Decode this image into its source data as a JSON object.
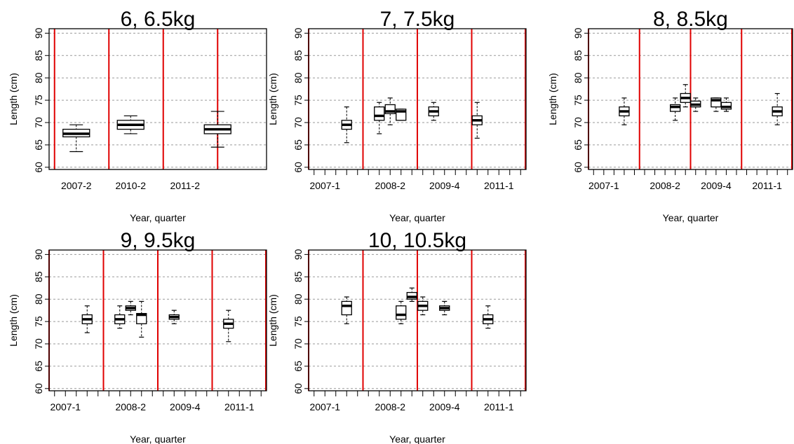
{
  "chart_data": [
    {
      "type": "boxplot",
      "title": "6, 6.5kg",
      "xlabel": "Year, quarter",
      "ylabel": "Length (cm)",
      "ylim": [
        59.5,
        91
      ],
      "yticks": [
        60,
        65,
        70,
        75,
        80,
        85,
        90
      ],
      "grid": true,
      "x_positions": 4,
      "x_ticks": [],
      "x_ticklabels": [
        {
          "label": "2007-2",
          "x": 1
        },
        {
          "label": "2010-2",
          "x": 2
        },
        {
          "label": "2011-2",
          "x": 3
        }
      ],
      "red_lines": [
        0.6,
        1.6,
        2.6,
        3.6
      ],
      "boxes": [
        {
          "x": 1,
          "whisker_low": 63.5,
          "q1": 66.8,
          "median": 67.5,
          "q3": 68.5,
          "whisker_high": 69.5
        },
        {
          "x": 2,
          "whisker_low": 67.5,
          "q1": 68.5,
          "median": 69.5,
          "q3": 70.5,
          "whisker_high": 71.5
        },
        {
          "x": 3.6,
          "whisker_low": 64.5,
          "q1": 67.5,
          "median": 68.5,
          "q3": 69.5,
          "whisker_high": 72.5
        }
      ]
    },
    {
      "type": "boxplot",
      "title": "7, 7.5kg",
      "xlabel": "Year, quarter",
      "ylabel": "Length (cm)",
      "ylim": [
        59.5,
        91
      ],
      "yticks": [
        60,
        65,
        70,
        75,
        80,
        85,
        90
      ],
      "grid": true,
      "x_positions": 20,
      "x_ticks": [
        1,
        2,
        3,
        4,
        5,
        6,
        7,
        8,
        9,
        10,
        11,
        12,
        13,
        14,
        15,
        16,
        17,
        18,
        19,
        20
      ],
      "x_ticklabels": [
        {
          "label": "2007-1",
          "x": 2
        },
        {
          "label": "2008-2",
          "x": 8
        },
        {
          "label": "2009-4",
          "x": 13
        },
        {
          "label": "2011-1",
          "x": 18
        }
      ],
      "red_lines": [
        0.5,
        5.5,
        10.5,
        15.5,
        20.5
      ],
      "boxes": [
        {
          "x": 4,
          "whisker_low": 65.5,
          "q1": 68.5,
          "median": 69.5,
          "q3": 70.5,
          "whisker_high": 73.5
        },
        {
          "x": 7,
          "whisker_low": 67.5,
          "q1": 70.5,
          "median": 71.5,
          "q3": 73.5,
          "whisker_high": 74.5
        },
        {
          "x": 8,
          "whisker_low": 69.5,
          "q1": 72,
          "median": 72.5,
          "q3": 74,
          "whisker_high": 75.5
        },
        {
          "x": 9,
          "whisker_low": 70.5,
          "q1": 70.5,
          "median": 72.5,
          "q3": 73,
          "whisker_high": 73
        },
        {
          "x": 12,
          "whisker_low": 70.5,
          "q1": 71.5,
          "median": 72.5,
          "q3": 73.5,
          "whisker_high": 74.5
        },
        {
          "x": 16,
          "whisker_low": 66.5,
          "q1": 69.5,
          "median": 70.5,
          "q3": 71.5,
          "whisker_high": 74.5
        }
      ]
    },
    {
      "type": "boxplot",
      "title": "8, 8.5kg",
      "xlabel": "Year, quarter",
      "ylabel": "Length (cm)",
      "ylim": [
        59.5,
        91
      ],
      "yticks": [
        60,
        65,
        70,
        75,
        80,
        85,
        90
      ],
      "grid": true,
      "x_positions": 20,
      "x_ticks": [
        1,
        2,
        3,
        4,
        5,
        6,
        7,
        8,
        9,
        10,
        11,
        12,
        13,
        14,
        15,
        16,
        17,
        18,
        19,
        20
      ],
      "x_ticklabels": [
        {
          "label": "2007-1",
          "x": 2
        },
        {
          "label": "2008-2",
          "x": 8
        },
        {
          "label": "2009-4",
          "x": 13
        },
        {
          "label": "2011-1",
          "x": 18
        }
      ],
      "red_lines": [
        0.5,
        5.5,
        10.5,
        15.5,
        20.5
      ],
      "boxes": [
        {
          "x": 4,
          "whisker_low": 69.5,
          "q1": 71.5,
          "median": 72.5,
          "q3": 73.5,
          "whisker_high": 75.5
        },
        {
          "x": 9,
          "whisker_low": 70.5,
          "q1": 72.5,
          "median": 73.5,
          "q3": 74,
          "whisker_high": 75.5
        },
        {
          "x": 10,
          "whisker_low": 73.5,
          "q1": 74.5,
          "median": 75.5,
          "q3": 76.5,
          "whisker_high": 78.5
        },
        {
          "x": 11,
          "whisker_low": 72.5,
          "q1": 73.5,
          "median": 74,
          "q3": 74.8,
          "whisker_high": 75.5
        },
        {
          "x": 13,
          "whisker_low": 72.5,
          "q1": 73.5,
          "median": 75,
          "q3": 75.5,
          "whisker_high": 75.5
        },
        {
          "x": 14,
          "whisker_low": 72.5,
          "q1": 73,
          "median": 73.5,
          "q3": 74.5,
          "whisker_high": 75.5
        },
        {
          "x": 19,
          "whisker_low": 69.5,
          "q1": 71.5,
          "median": 72.5,
          "q3": 73.5,
          "whisker_high": 76.5
        }
      ]
    },
    {
      "type": "boxplot",
      "title": "9, 9.5kg",
      "xlabel": "Year, quarter",
      "ylabel": "Length (cm)",
      "ylim": [
        59.5,
        91
      ],
      "yticks": [
        60,
        65,
        70,
        75,
        80,
        85,
        90
      ],
      "grid": true,
      "x_positions": 20,
      "x_ticks": [
        1,
        2,
        3,
        4,
        5,
        6,
        7,
        8,
        9,
        10,
        11,
        12,
        13,
        14,
        15,
        16,
        17,
        18,
        19,
        20
      ],
      "x_ticklabels": [
        {
          "label": "2007-1",
          "x": 2
        },
        {
          "label": "2008-2",
          "x": 8
        },
        {
          "label": "2009-4",
          "x": 13
        },
        {
          "label": "2011-1",
          "x": 18
        }
      ],
      "red_lines": [
        0.5,
        5.5,
        10.5,
        15.5,
        20.5
      ],
      "boxes": [
        {
          "x": 4,
          "whisker_low": 72.5,
          "q1": 74.5,
          "median": 75.5,
          "q3": 76.5,
          "whisker_high": 78.5
        },
        {
          "x": 7,
          "whisker_low": 73.5,
          "q1": 74.5,
          "median": 75.5,
          "q3": 76.5,
          "whisker_high": 78.5
        },
        {
          "x": 8,
          "whisker_low": 76.5,
          "q1": 77.5,
          "median": 78,
          "q3": 78.5,
          "whisker_high": 79.5
        },
        {
          "x": 9,
          "whisker_low": 71.5,
          "q1": 74.5,
          "median": 76.5,
          "q3": 76.8,
          "whisker_high": 79.5
        },
        {
          "x": 12,
          "whisker_low": 74.5,
          "q1": 75.5,
          "median": 76,
          "q3": 76.5,
          "whisker_high": 77.5
        },
        {
          "x": 17,
          "whisker_low": 70.5,
          "q1": 73.5,
          "median": 74.5,
          "q3": 75.5,
          "whisker_high": 77.5
        }
      ]
    },
    {
      "type": "boxplot",
      "title": "10, 10.5kg",
      "xlabel": "Year, quarter",
      "ylabel": "Length (cm)",
      "ylim": [
        59.5,
        91
      ],
      "yticks": [
        60,
        65,
        70,
        75,
        80,
        85,
        90
      ],
      "grid": true,
      "x_positions": 20,
      "x_ticks": [
        1,
        2,
        3,
        4,
        5,
        6,
        7,
        8,
        9,
        10,
        11,
        12,
        13,
        14,
        15,
        16,
        17,
        18,
        19,
        20
      ],
      "x_ticklabels": [
        {
          "label": "2007-1",
          "x": 2
        },
        {
          "label": "2008-2",
          "x": 8
        },
        {
          "label": "2009-4",
          "x": 13
        },
        {
          "label": "2011-1",
          "x": 18
        }
      ],
      "red_lines": [
        0.5,
        5.5,
        10.5,
        15.5,
        20.5
      ],
      "boxes": [
        {
          "x": 4,
          "whisker_low": 74.5,
          "q1": 76.5,
          "median": 78.5,
          "q3": 79.5,
          "whisker_high": 80.5
        },
        {
          "x": 9,
          "whisker_low": 74.5,
          "q1": 75.5,
          "median": 76.5,
          "q3": 78.5,
          "whisker_high": 79.5
        },
        {
          "x": 10,
          "whisker_low": 79.5,
          "q1": 80,
          "median": 80.5,
          "q3": 81.5,
          "whisker_high": 82.5
        },
        {
          "x": 11,
          "whisker_low": 76.5,
          "q1": 77.5,
          "median": 78.5,
          "q3": 79.5,
          "whisker_high": 80.5
        },
        {
          "x": 13,
          "whisker_low": 76.5,
          "q1": 77.5,
          "median": 78,
          "q3": 78.5,
          "whisker_high": 79.5
        },
        {
          "x": 17,
          "whisker_low": 73.5,
          "q1": 74.5,
          "median": 75.5,
          "q3": 76.5,
          "whisker_high": 78.5
        }
      ]
    }
  ],
  "colors": {
    "separator": "#e00000",
    "grid": "#9a9a9a",
    "box_stroke": "#000000",
    "background": "#ffffff"
  }
}
